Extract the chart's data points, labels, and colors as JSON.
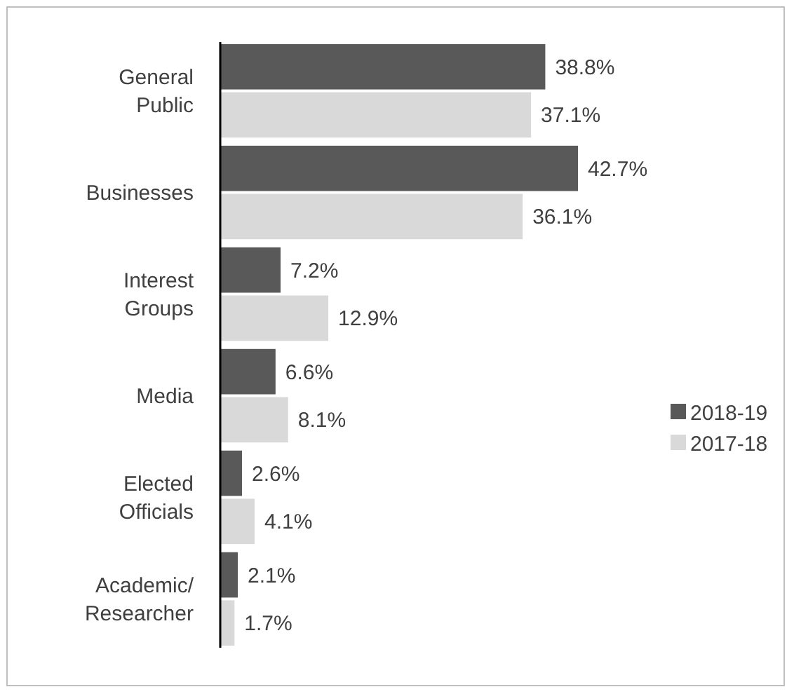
{
  "chart_data": {
    "type": "bar",
    "orientation": "horizontal",
    "categories": [
      "General Public",
      "Businesses",
      "Interest Groups",
      "Media",
      "Elected Officials",
      "Academic/Researcher"
    ],
    "series": [
      {
        "name": "2018-19",
        "color": "#595959",
        "values": [
          38.8,
          42.7,
          7.2,
          6.6,
          2.6,
          2.1
        ],
        "value_labels": [
          "38.8%",
          "42.7%",
          "7.2%",
          "6.6%",
          "2.6%",
          "2.1%"
        ]
      },
      {
        "name": "2017-18",
        "color": "#d9d9d9",
        "values": [
          37.1,
          36.1,
          12.9,
          8.1,
          4.1,
          1.7
        ],
        "value_labels": [
          "37.1%",
          "36.1%",
          "12.9%",
          "8.1%",
          "4.1%",
          "1.7%"
        ]
      }
    ],
    "legend": "right"
  }
}
